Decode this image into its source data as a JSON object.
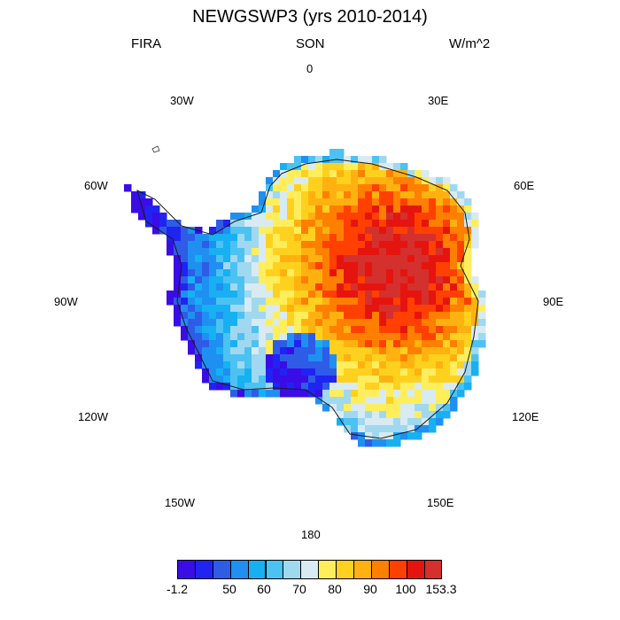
{
  "title": "NEWGSWP3 (yrs 2010-2014)",
  "left_subtitle": "FIRA",
  "center_subtitle": "SON",
  "right_subtitle": "W/m^2",
  "lon_labels": {
    "l0": "0",
    "l30e": "30E",
    "l60e": "60E",
    "l90e": "90E",
    "l120e": "120E",
    "l150e": "150E",
    "l180": "180",
    "l150w": "150W",
    "l120w": "120W",
    "l90w": "90W",
    "l60w": "60W",
    "l30w": "30W"
  },
  "colorbar": {
    "colors": [
      "#3a0ce6",
      "#1f24f2",
      "#2e5ce6",
      "#1f8ff2",
      "#17b0f2",
      "#4cc2f2",
      "#a0d8f0",
      "#d8eaf2",
      "#ffee5c",
      "#ffd11f",
      "#ffb20f",
      "#ff7f00",
      "#ff4000",
      "#e6140f",
      "#d4302e"
    ],
    "labels": [
      "-1.2",
      "50",
      "60",
      "70",
      "80",
      "90",
      "100",
      "153.3"
    ]
  }
}
